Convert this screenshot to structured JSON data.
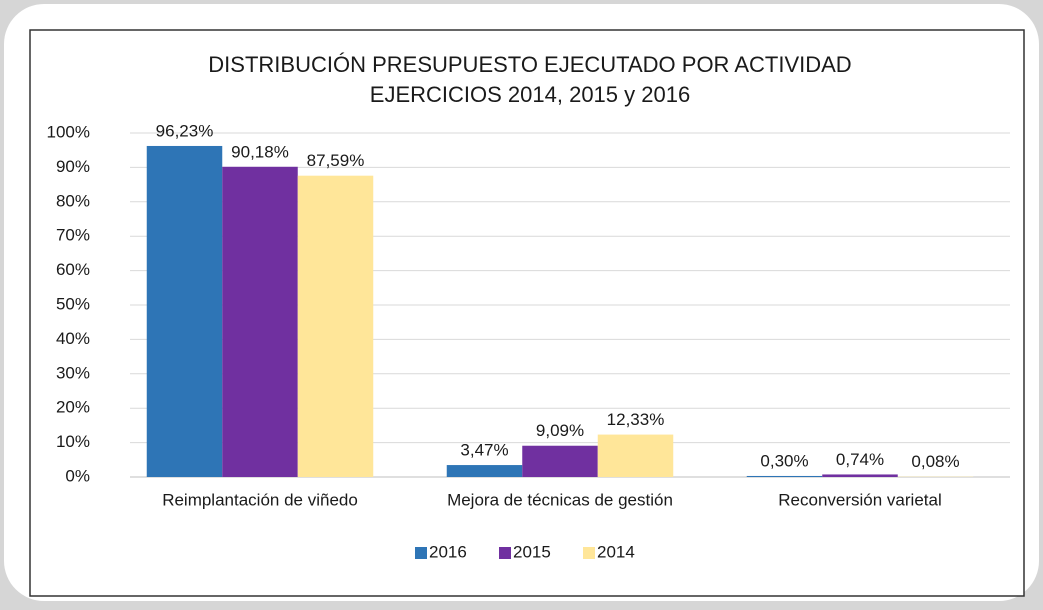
{
  "chart_data": {
    "type": "bar",
    "title": [
      "DISTRIBUCIÓN PRESUPUESTO EJECUTADO POR ACTIVIDAD",
      "EJERCICIOS 2014, 2015 y 2016"
    ],
    "categories": [
      "Reimplantación de viñedo",
      "Mejora de técnicas de gestión",
      "Reconversión varietal"
    ],
    "series": [
      {
        "name": "2016",
        "color": "#2e75b6",
        "values": [
          96.23,
          3.47,
          0.3
        ],
        "value_labels": [
          "96,23%",
          "3,47%",
          "0,30%"
        ]
      },
      {
        "name": "2015",
        "color": "#7030a0",
        "values": [
          90.18,
          9.09,
          0.74
        ],
        "value_labels": [
          "90,18%",
          "9,09%",
          "0,74%"
        ]
      },
      {
        "name": "2014",
        "color": "#ffe699",
        "values": [
          87.59,
          12.33,
          0.08
        ],
        "value_labels": [
          "87,59%",
          "12,33%",
          "0,08%"
        ]
      }
    ],
    "ylim": [
      0,
      100
    ],
    "yticks": [
      {
        "value": 0,
        "label": "0%"
      },
      {
        "value": 10,
        "label": "10%"
      },
      {
        "value": 20,
        "label": "20%"
      },
      {
        "value": 30,
        "label": "30%"
      },
      {
        "value": 40,
        "label": "40%"
      },
      {
        "value": 50,
        "label": "50%"
      },
      {
        "value": 60,
        "label": "60%"
      },
      {
        "value": 70,
        "label": "70%"
      },
      {
        "value": 80,
        "label": "80%"
      },
      {
        "value": 90,
        "label": "90%"
      },
      {
        "value": 100,
        "label": "100%"
      }
    ],
    "grid": true,
    "legend": "bottom"
  }
}
